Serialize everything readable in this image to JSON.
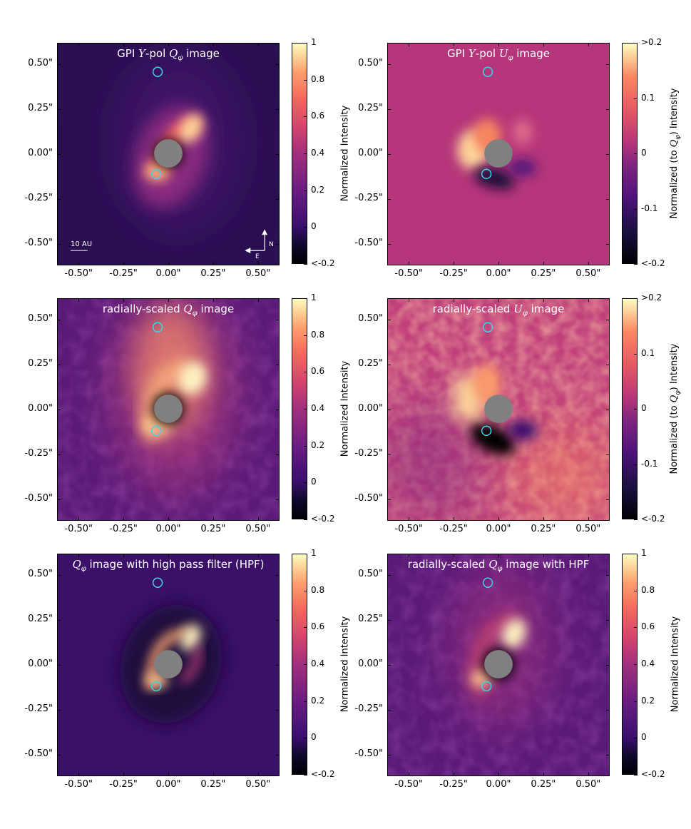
{
  "colors": {
    "colormap": [
      "#000004",
      "#1c1044",
      "#4f127b",
      "#812581",
      "#b5367a",
      "#e55964",
      "#fb8761",
      "#fec287",
      "#fcfdbf"
    ],
    "marker": "#3fd5e8",
    "mask": "#808080"
  },
  "axes": {
    "xticks": [
      "-0.50\"",
      "-0.25\"",
      "0.00\"",
      "0.25\"",
      "0.50\""
    ],
    "yticks": [
      "0.50\"",
      "0.25\"",
      "0.00\"",
      "-0.25\"",
      "-0.50\""
    ],
    "tick_values": [
      -0.5,
      -0.25,
      0.0,
      0.25,
      0.5
    ],
    "range": [
      -0.62,
      0.62
    ]
  },
  "colorbars": {
    "q": {
      "label": "Normalized Intensity",
      "ticks": [
        "1",
        "0.8",
        "0.6",
        "0.4",
        "0.2",
        "0",
        "<-0.2"
      ]
    },
    "u": {
      "label_pre": "Normalized (to ",
      "label_post": ") Intensity",
      "ticks": [
        ">0.2",
        "0.1",
        "0",
        "-0.1",
        "<-0.2"
      ]
    }
  },
  "annotations": {
    "scale_bar": "10 AU",
    "north": "N",
    "east": "E"
  },
  "chart_data": [
    {
      "type": "heatmap",
      "panel": "top-left",
      "title_pre": "GPI ",
      "title_post": "-pol ",
      "title_end": " image",
      "colorbar": "q"
    },
    {
      "type": "heatmap",
      "panel": "top-right",
      "title_pre": "GPI ",
      "title_post": "-pol ",
      "title_end": " image",
      "colorbar": "u"
    },
    {
      "type": "heatmap",
      "panel": "middle-left",
      "title_pre": "radially-scaled ",
      "title_end": " image",
      "colorbar": "q"
    },
    {
      "type": "heatmap",
      "panel": "middle-right",
      "title_pre": "radially-scaled ",
      "title_end": " image",
      "colorbar": "u"
    },
    {
      "type": "heatmap",
      "panel": "bottom-left",
      "title_end": " image with high pass filter (HPF)",
      "colorbar": "q"
    },
    {
      "type": "heatmap",
      "panel": "bottom-right",
      "title_pre": "radially-scaled ",
      "title_end": " image with HPF",
      "colorbar": "q"
    }
  ]
}
